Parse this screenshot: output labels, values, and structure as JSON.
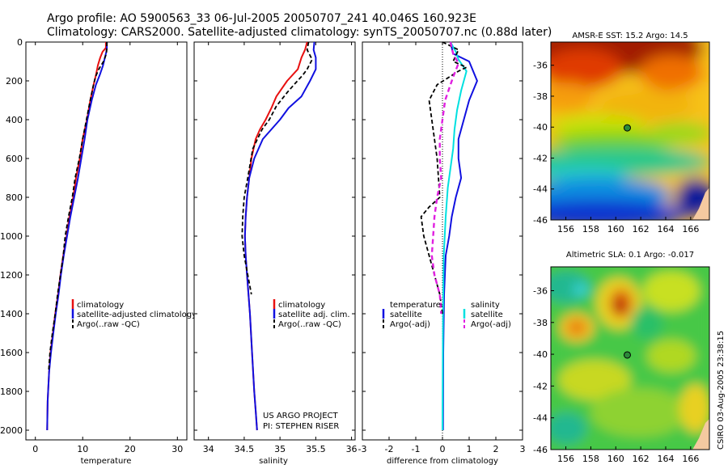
{
  "header": {
    "line1": "Argo profile: AO 5900563_33 06-Jul-2005 20050707_241 40.046S 160.923E",
    "line2": "Climatology: CARS2000. Satellite-adjusted climatology: synTS_20050707.nc (0.88d later)"
  },
  "credit": {
    "line1": "US ARGO PROJECT",
    "line2": "PI: STEPHEN RISER"
  },
  "side_label": "CSIRO 03-Aug-2005 23:38:15",
  "colors": {
    "climatology": "#e81010",
    "satellite": "#1010e0",
    "argo": "#000000",
    "sal_satellite": "#00e0e0",
    "sal_argo": "#e020e0"
  },
  "chart_data": [
    {
      "type": "line",
      "xlabel": "temperature",
      "ylabel": "",
      "xlim": [
        -2,
        32
      ],
      "ylim": [
        2050,
        0
      ],
      "xticks": [
        "0",
        "10",
        "20",
        "30"
      ],
      "yticks": [
        "0",
        "200",
        "400",
        "600",
        "800",
        "1000",
        "1200",
        "1400",
        "1600",
        "1800",
        "2000"
      ],
      "legend": [
        "climatology",
        "satellite-adjusted climatology",
        "Argo(..raw -QC)"
      ],
      "series": [
        {
          "name": "climatology",
          "x": [
            14.9,
            14.9,
            14.2,
            13.7,
            13.2,
            12.8,
            12.3,
            11.6,
            10.9,
            10.0,
            9.4,
            8.6,
            8.0,
            7.2,
            6.6,
            5.9,
            5.3,
            4.8,
            4.2,
            3.7,
            3.2,
            2.9,
            2.6,
            2.5
          ],
          "y": [
            0,
            30,
            50,
            80,
            120,
            170,
            220,
            300,
            400,
            500,
            600,
            700,
            800,
            900,
            1000,
            1100,
            1200,
            1300,
            1400,
            1500,
            1600,
            1700,
            1850,
            2000
          ]
        },
        {
          "name": "satellite-adjusted climatology",
          "x": [
            15.1,
            15.1,
            15.0,
            14.7,
            14.3,
            13.6,
            12.8,
            11.9,
            11.0,
            10.4,
            9.7,
            9.0,
            8.2,
            7.4,
            6.7,
            6.0,
            5.4,
            4.9,
            4.3,
            3.8,
            3.3,
            2.9,
            2.6,
            2.5
          ],
          "y": [
            0,
            30,
            50,
            80,
            120,
            170,
            220,
            300,
            400,
            500,
            600,
            700,
            800,
            900,
            1000,
            1100,
            1200,
            1300,
            1400,
            1500,
            1600,
            1700,
            1850,
            2000
          ]
        },
        {
          "name": "Argo(..raw -QC)",
          "x": [
            15.1,
            15.1,
            15.0,
            14.4,
            13.4,
            12.7,
            12.2,
            11.6,
            10.8,
            10.0,
            9.3,
            8.4,
            7.8,
            7.0,
            6.3,
            5.9,
            5.3,
            4.7,
            4.2,
            3.6,
            3.1,
            2.8
          ],
          "y": [
            0,
            20,
            60,
            100,
            140,
            180,
            230,
            300,
            400,
            500,
            600,
            700,
            800,
            900,
            1000,
            1100,
            1200,
            1300,
            1400,
            1500,
            1600,
            1700
          ]
        }
      ]
    },
    {
      "type": "line",
      "xlabel": "salinity",
      "xlim": [
        33.8,
        36.05
      ],
      "ylim": [
        2050,
        0
      ],
      "xticks": [
        "34",
        "34.5",
        "35",
        "35.5",
        "36"
      ],
      "legend": [
        "climatology",
        "satellite adj. clim.",
        "Argo(..raw -QC)"
      ],
      "series": [
        {
          "name": "climatology",
          "x": [
            35.38,
            35.35,
            35.3,
            35.25,
            35.1,
            34.95,
            34.88,
            34.8,
            34.72,
            34.66,
            34.6,
            34.57,
            34.54,
            34.52,
            34.51,
            34.52,
            34.54,
            34.58,
            34.61,
            34.64,
            34.66,
            34.68
          ],
          "y": [
            0,
            40,
            80,
            140,
            200,
            280,
            340,
            400,
            450,
            500,
            600,
            700,
            800,
            900,
            1000,
            1100,
            1200,
            1400,
            1600,
            1800,
            1900,
            2000
          ]
        },
        {
          "name": "satellite adj. clim.",
          "x": [
            35.48,
            35.47,
            35.5,
            35.5,
            35.42,
            35.3,
            35.12,
            35.0,
            34.88,
            34.76,
            34.64,
            34.57,
            34.54,
            34.52,
            34.51,
            34.52,
            34.54,
            34.58,
            34.61,
            34.64,
            34.66,
            34.68
          ],
          "y": [
            0,
            40,
            80,
            140,
            200,
            280,
            340,
            400,
            450,
            500,
            600,
            700,
            800,
            900,
            1000,
            1100,
            1200,
            1400,
            1600,
            1800,
            1900,
            2000
          ]
        },
        {
          "name": "Argo(..raw -QC)",
          "x": [
            35.4,
            35.38,
            35.45,
            35.38,
            35.32,
            35.22,
            35.1,
            34.95,
            34.85,
            34.75,
            34.62,
            34.55,
            34.5,
            34.48,
            34.47,
            34.5,
            34.55,
            34.6
          ],
          "y": [
            0,
            40,
            90,
            140,
            170,
            210,
            260,
            330,
            400,
            450,
            550,
            700,
            800,
            900,
            1000,
            1100,
            1200,
            1300
          ]
        }
      ]
    },
    {
      "type": "line",
      "xlabel": "difference from climatology",
      "xlim": [
        -3,
        3
      ],
      "ylim": [
        2050,
        0
      ],
      "xticks": [
        "-3",
        "-2",
        "-1",
        "0",
        "1",
        "2",
        "3"
      ],
      "legend": [
        "temperature",
        "satellite",
        "Argo(-adj)",
        "salinity",
        "satellite",
        "Argo(-adj)"
      ],
      "series": [
        {
          "name": "temperature satellite",
          "x": [
            0.3,
            0.4,
            1.0,
            1.3,
            1.0,
            0.8,
            0.6,
            0.6,
            0.7,
            0.5,
            0.35,
            0.25,
            0.12,
            0.06,
            0.03,
            0.02
          ],
          "y": [
            0,
            60,
            100,
            200,
            300,
            400,
            500,
            600,
            700,
            800,
            900,
            1000,
            1100,
            1300,
            1600,
            2000
          ]
        },
        {
          "name": "salinity satellite",
          "x": [
            0.3,
            0.5,
            0.6,
            0.9,
            0.7,
            0.55,
            0.45,
            0.4,
            0.3,
            0.2,
            0.12,
            0.05,
            0.02,
            0.0
          ],
          "y": [
            0,
            50,
            90,
            150,
            250,
            350,
            450,
            550,
            650,
            750,
            900,
            1100,
            1400,
            2000
          ]
        },
        {
          "name": "temperature Argo(-adj)",
          "x": [
            0.0,
            0.6,
            0.4,
            0.9,
            0.6,
            -0.2,
            -0.5,
            -0.4,
            -0.2,
            -0.1,
            -0.5,
            -0.8,
            -0.7,
            -0.5,
            -0.3,
            -0.1,
            0.0
          ],
          "y": [
            0,
            40,
            100,
            130,
            150,
            220,
            300,
            400,
            600,
            800,
            850,
            900,
            1000,
            1100,
            1200,
            1300,
            1400
          ]
        },
        {
          "name": "salinity Argo(-adj)",
          "x": [
            0.3,
            0.4,
            0.6,
            0.4,
            0.1,
            0.0,
            -0.1,
            -0.1,
            -0.05,
            -0.2,
            -0.3,
            -0.35,
            -0.4,
            -0.3,
            -0.1,
            -0.05
          ],
          "y": [
            0,
            60,
            110,
            180,
            300,
            400,
            500,
            600,
            700,
            800,
            900,
            1000,
            1100,
            1200,
            1300,
            1400
          ]
        }
      ]
    },
    {
      "type": "heatmap",
      "title": "AMSR-E SST: 15.2 Argo: 14.5",
      "xlim": [
        154.8,
        167.5
      ],
      "ylim": [
        -46,
        -34.5
      ],
      "xticks": [
        "156",
        "158",
        "160",
        "162",
        "164",
        "166"
      ],
      "yticks": [
        "-36",
        "-38",
        "-40",
        "-42",
        "-44",
        "-46"
      ],
      "float": {
        "lon": 160.923,
        "lat": -40.046
      }
    },
    {
      "type": "heatmap",
      "title": "Altimetric SLA: 0.1 Argo: -0.017",
      "xlim": [
        154.8,
        167.5
      ],
      "ylim": [
        -46,
        -34.5
      ],
      "xticks": [
        "156",
        "158",
        "160",
        "162",
        "164",
        "166"
      ],
      "yticks": [
        "-36",
        "-38",
        "-40",
        "-42",
        "-44",
        "-46"
      ],
      "float": {
        "lon": 160.923,
        "lat": -40.046
      }
    }
  ]
}
